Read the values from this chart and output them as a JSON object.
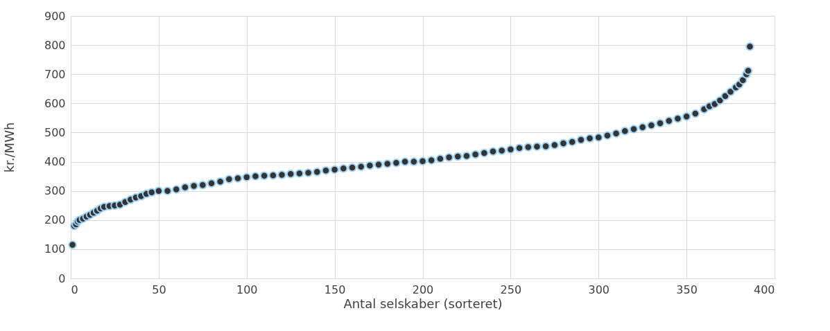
{
  "chart_data": {
    "type": "scatter",
    "xlabel": "Antal selskaber (sorteret)",
    "ylabel": "kr./MWh",
    "x": [
      1,
      2,
      3,
      4,
      5,
      7,
      9,
      11,
      13,
      15,
      17,
      19,
      22,
      25,
      28,
      31,
      34,
      37,
      40,
      43,
      46,
      50,
      55,
      60,
      65,
      70,
      75,
      80,
      85,
      90,
      95,
      100,
      105,
      110,
      115,
      120,
      125,
      130,
      135,
      140,
      145,
      150,
      155,
      160,
      165,
      170,
      175,
      180,
      185,
      190,
      195,
      200,
      205,
      210,
      215,
      220,
      225,
      230,
      235,
      240,
      245,
      250,
      255,
      260,
      265,
      270,
      275,
      280,
      285,
      290,
      295,
      300,
      305,
      310,
      315,
      320,
      325,
      330,
      335,
      340,
      345,
      350,
      355,
      360,
      363,
      366,
      369,
      372,
      375,
      378,
      380,
      382,
      384,
      385,
      386
    ],
    "series": [
      {
        "color": "#333333",
        "values": [
          115,
          180,
          185,
          195,
          200,
          205,
          212,
          218,
          225,
          232,
          240,
          245,
          248,
          250,
          253,
          262,
          270,
          277,
          282,
          290,
          295,
          300,
          300,
          305,
          312,
          317,
          320,
          326,
          332,
          340,
          343,
          347,
          350,
          352,
          353,
          355,
          358,
          360,
          362,
          365,
          370,
          373,
          377,
          380,
          383,
          387,
          390,
          393,
          396,
          400,
          400,
          402,
          405,
          410,
          415,
          418,
          420,
          425,
          430,
          435,
          438,
          442,
          447,
          450,
          452,
          453,
          457,
          463,
          468,
          475,
          480,
          483,
          490,
          497,
          505,
          512,
          518,
          525,
          532,
          540,
          548,
          555,
          565,
          580,
          590,
          598,
          610,
          625,
          640,
          655,
          665,
          680,
          700,
          712,
          795
        ]
      }
    ],
    "xlim": [
      0,
      400
    ],
    "xticks": [
      0,
      50,
      100,
      150,
      200,
      250,
      300,
      350,
      400
    ],
    "ylim": [
      0,
      900
    ],
    "yticks": [
      0,
      100,
      200,
      300,
      400,
      500,
      600,
      700,
      800,
      900
    ],
    "grid": true,
    "marker": "circle"
  }
}
